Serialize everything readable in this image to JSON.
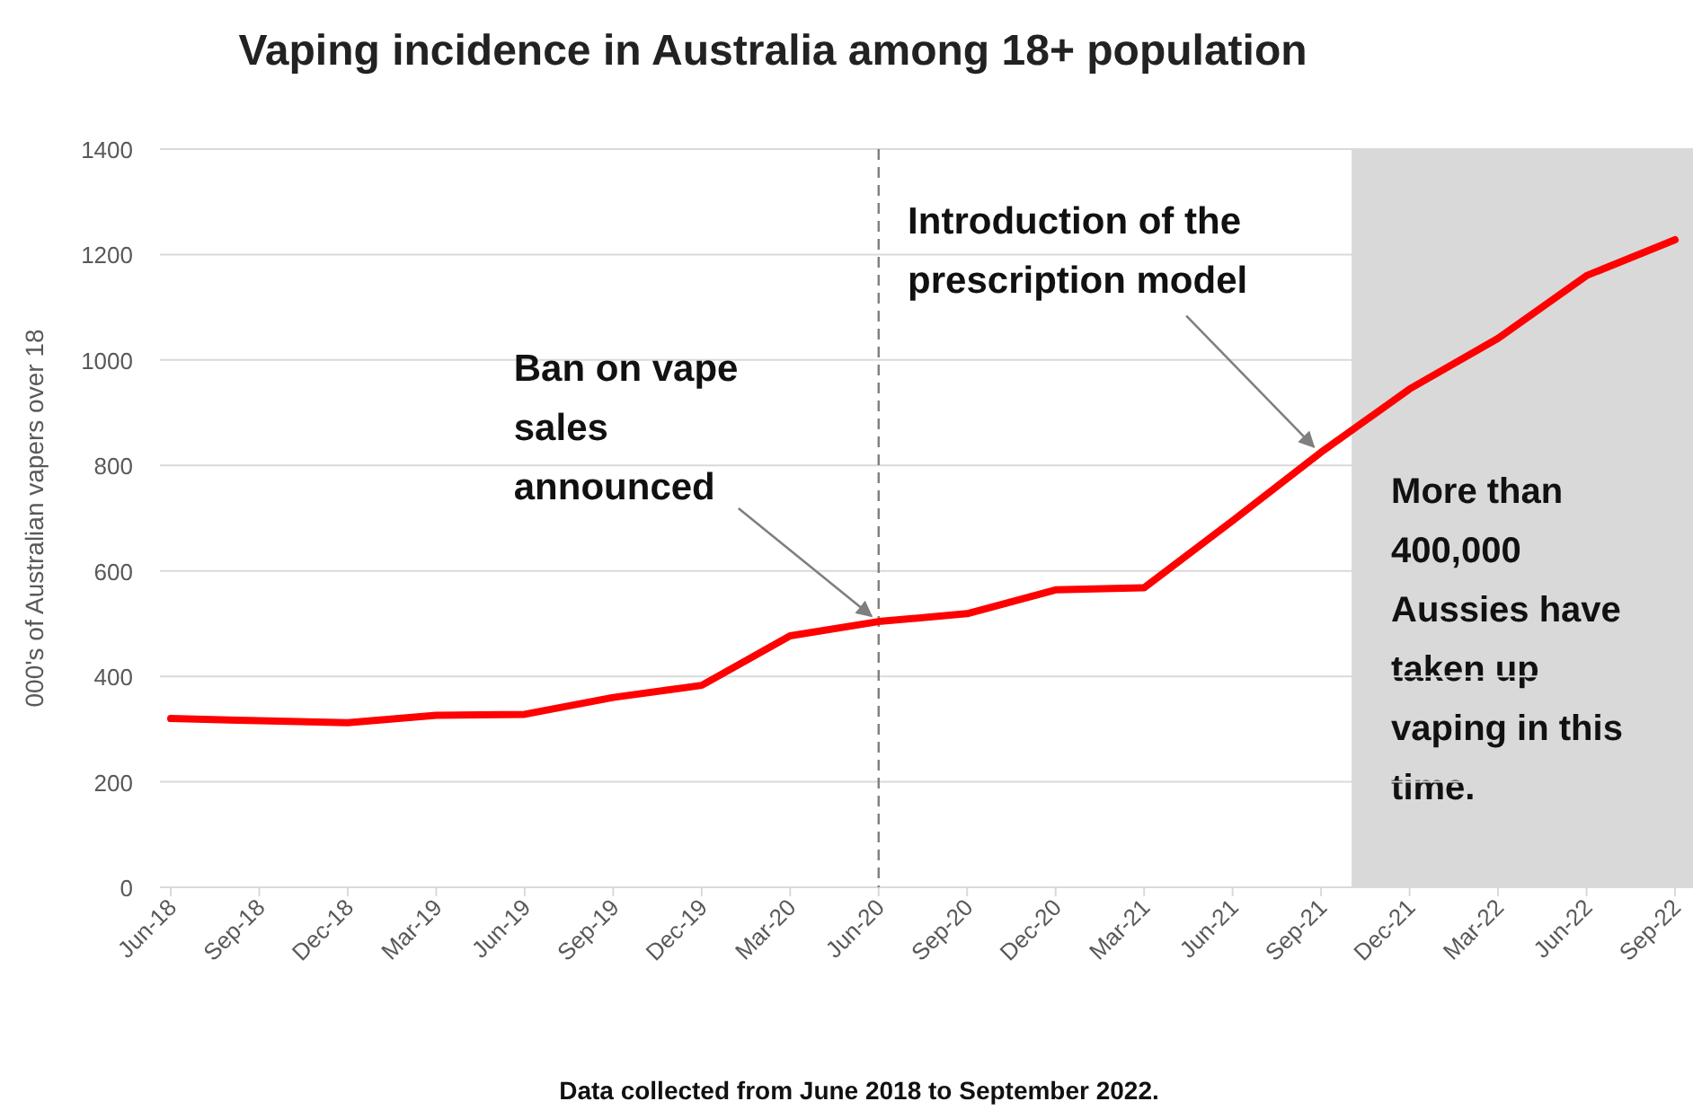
{
  "chart_data": {
    "type": "line",
    "title": "Vaping incidence in Australia among 18+ population",
    "ylabel": "000's of Australian vapers over 18",
    "categories": [
      "Jun-18",
      "Sep-18",
      "Dec-18",
      "Mar-19",
      "Jun-19",
      "Sep-19",
      "Dec-19",
      "Mar-20",
      "Jun-20",
      "Sep-20",
      "Dec-20",
      "Mar-21",
      "Jun-21",
      "Sep-21",
      "Dec-21",
      "Mar-22",
      "Jun-22",
      "Sep-22"
    ],
    "series": [
      {
        "color": "#ff0000",
        "values": [
          320,
          316,
          312,
          326,
          328,
          360,
          383,
          477,
          504,
          519,
          564,
          568,
          695,
          825,
          945,
          1041,
          1160,
          1228
        ]
      }
    ],
    "ylim": [
      0,
      1400
    ],
    "yticks": [
      0,
      200,
      400,
      600,
      800,
      1000,
      1200,
      1400
    ],
    "grid": "y",
    "marker": "none",
    "line_style": "solid",
    "ref_lines": [
      {
        "axis": "x",
        "value": "Jun-20",
        "line_style": "dashed",
        "color": "#7f7f7f"
      }
    ],
    "bands": [
      {
        "axis": "x",
        "from": "Sep-21",
        "to": "Sep-22",
        "color": "#d9d9d9",
        "label": "More than 400,000 Aussies have taken up vaping in this time."
      }
    ],
    "annotations": [
      {
        "text": "Ban on vape sales announced",
        "x": "Jun-20",
        "y": 504
      },
      {
        "text": "Introduction of the prescription model",
        "x": "Sep-21",
        "y": 825
      },
      "Data collected from June 2018 to September 2022."
    ]
  }
}
